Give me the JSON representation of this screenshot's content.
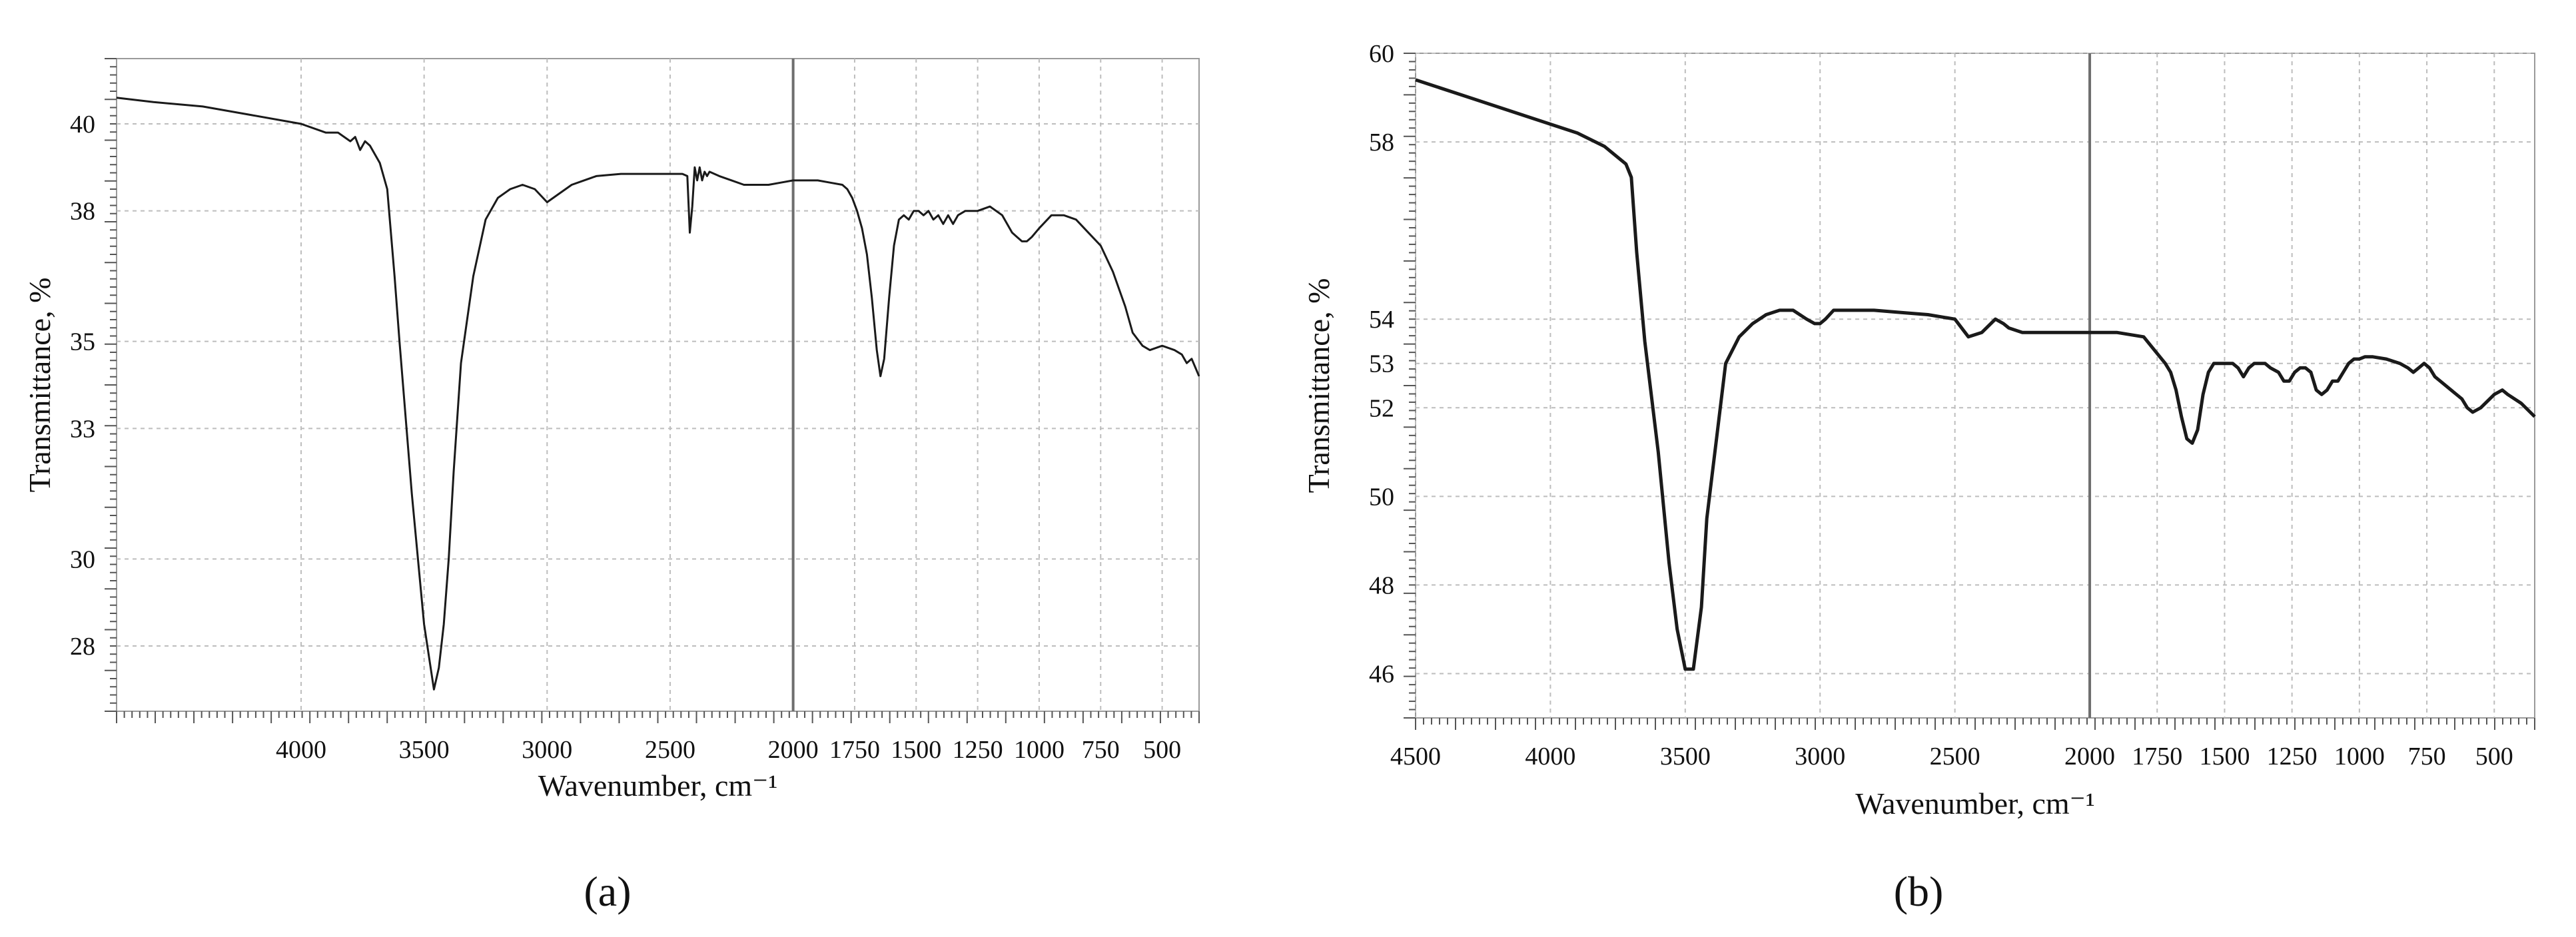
{
  "chart_data": [
    {
      "type": "line",
      "panel_label": "(a)",
      "xlabel": "Wavenumber, cm⁻¹",
      "ylabel": "Transmittance, %",
      "xlim": [
        4750,
        350
      ],
      "ylim": [
        26.5,
        41.5
      ],
      "x_reversed": true,
      "grid": true,
      "x_ticks": [
        4000,
        3500,
        3000,
        2500,
        2000,
        1750,
        1500,
        1250,
        1000,
        750,
        500
      ],
      "x_tick_labels": [
        "4000",
        "3500",
        "3000",
        "2500",
        "2000",
        "1750",
        "1500",
        "1250",
        "1000",
        "750",
        "500"
      ],
      "y_ticks": [
        28,
        30,
        33,
        35,
        38,
        40
      ],
      "y_tick_labels": [
        "28",
        "30",
        "33",
        "35",
        "38",
        "40"
      ],
      "series": [
        {
          "x": [
            4750,
            4600,
            4400,
            4200,
            4000,
            3900,
            3850,
            3800,
            3780,
            3760,
            3740,
            3720,
            3700,
            3680,
            3650,
            3620,
            3600,
            3550,
            3500,
            3460,
            3440,
            3420,
            3400,
            3380,
            3350,
            3300,
            3250,
            3200,
            3150,
            3100,
            3050,
            3000,
            2950,
            2900,
            2850,
            2800,
            2700,
            2600,
            2500,
            2450,
            2430,
            2420,
            2410,
            2400,
            2390,
            2380,
            2370,
            2360,
            2350,
            2340,
            2300,
            2250,
            2200,
            2100,
            2050,
            2000,
            1950,
            1900,
            1850,
            1800,
            1780,
            1760,
            1740,
            1720,
            1700,
            1680,
            1660,
            1645,
            1630,
            1610,
            1590,
            1570,
            1550,
            1530,
            1510,
            1490,
            1470,
            1450,
            1430,
            1410,
            1390,
            1370,
            1350,
            1330,
            1300,
            1250,
            1200,
            1150,
            1130,
            1110,
            1090,
            1070,
            1050,
            1030,
            1000,
            950,
            900,
            850,
            800,
            750,
            700,
            650,
            620,
            580,
            550,
            500,
            450,
            420,
            400,
            380,
            350
          ],
          "y": [
            40.6,
            40.5,
            40.4,
            40.2,
            40.0,
            39.8,
            39.8,
            39.6,
            39.7,
            39.4,
            39.6,
            39.5,
            39.3,
            39.1,
            38.5,
            36.5,
            35.0,
            31.5,
            28.5,
            27.0,
            27.5,
            28.5,
            30.0,
            32.0,
            34.5,
            36.5,
            37.8,
            38.3,
            38.5,
            38.6,
            38.5,
            38.2,
            38.4,
            38.6,
            38.7,
            38.8,
            38.85,
            38.85,
            38.85,
            38.85,
            38.8,
            37.5,
            38.1,
            39.0,
            38.7,
            39.0,
            38.7,
            38.9,
            38.8,
            38.9,
            38.8,
            38.7,
            38.6,
            38.6,
            38.65,
            38.7,
            38.7,
            38.7,
            38.65,
            38.6,
            38.5,
            38.3,
            38.0,
            37.6,
            37.0,
            36.0,
            34.8,
            34.2,
            34.6,
            36.0,
            37.2,
            37.8,
            37.9,
            37.8,
            38.0,
            38.0,
            37.9,
            38.0,
            37.8,
            37.9,
            37.7,
            37.9,
            37.7,
            37.9,
            38.0,
            38.0,
            38.1,
            37.9,
            37.7,
            37.5,
            37.4,
            37.3,
            37.3,
            37.4,
            37.6,
            37.9,
            37.9,
            37.8,
            37.5,
            37.2,
            36.6,
            35.8,
            35.2,
            34.9,
            34.8,
            34.9,
            34.8,
            34.7,
            34.5,
            34.6,
            34.2
          ]
        }
      ]
    },
    {
      "type": "line",
      "panel_label": "(b)",
      "xlabel": "Wavenumber, cm⁻¹",
      "ylabel": "Transmittance, %",
      "xlim": [
        4500,
        350
      ],
      "ylim": [
        45,
        60
      ],
      "x_reversed": true,
      "grid": true,
      "x_ticks": [
        4500,
        4000,
        3500,
        3000,
        2500,
        2000,
        1750,
        1500,
        1250,
        1000,
        750,
        500
      ],
      "x_tick_labels": [
        "4500",
        "4000",
        "3500",
        "3000",
        "2500",
        "2000",
        "1750",
        "1500",
        "1250",
        "1000",
        "750",
        "500"
      ],
      "y_ticks": [
        46,
        48,
        50,
        52,
        53,
        54,
        58,
        60
      ],
      "y_tick_labels": [
        "46",
        "48",
        "50",
        "52",
        "53",
        "54",
        "58",
        "60"
      ],
      "series": [
        {
          "x": [
            4500,
            4300,
            4100,
            3900,
            3800,
            3720,
            3700,
            3680,
            3650,
            3600,
            3560,
            3530,
            3500,
            3470,
            3440,
            3420,
            3380,
            3350,
            3300,
            3250,
            3200,
            3150,
            3100,
            3050,
            3020,
            3000,
            2980,
            2950,
            2900,
            2850,
            2800,
            2700,
            2600,
            2500,
            2450,
            2400,
            2350,
            2320,
            2300,
            2250,
            2200,
            2150,
            2100,
            2050,
            2000,
            1900,
            1800,
            1760,
            1720,
            1700,
            1680,
            1660,
            1640,
            1620,
            1600,
            1580,
            1560,
            1540,
            1520,
            1500,
            1470,
            1450,
            1430,
            1410,
            1390,
            1370,
            1350,
            1330,
            1300,
            1280,
            1260,
            1240,
            1220,
            1200,
            1180,
            1160,
            1140,
            1120,
            1100,
            1080,
            1060,
            1040,
            1020,
            1000,
            980,
            950,
            900,
            850,
            820,
            800,
            780,
            760,
            740,
            720,
            700,
            660,
            620,
            600,
            580,
            550,
            500,
            470,
            450,
            400,
            350
          ],
          "y": [
            59.4,
            59.0,
            58.6,
            58.2,
            57.9,
            57.5,
            57.2,
            55.5,
            53.5,
            51.0,
            48.5,
            47.0,
            46.1,
            46.1,
            47.5,
            49.5,
            51.5,
            53.0,
            53.6,
            53.9,
            54.1,
            54.2,
            54.2,
            54.0,
            53.9,
            53.9,
            54.0,
            54.2,
            54.2,
            54.2,
            54.2,
            54.15,
            54.1,
            54.0,
            53.6,
            53.7,
            54.0,
            53.9,
            53.8,
            53.7,
            53.7,
            53.7,
            53.7,
            53.7,
            53.7,
            53.7,
            53.6,
            53.3,
            53.0,
            52.8,
            52.4,
            51.8,
            51.3,
            51.2,
            51.5,
            52.3,
            52.8,
            53.0,
            53.0,
            53.0,
            53.0,
            52.9,
            52.7,
            52.9,
            53.0,
            53.0,
            53.0,
            52.9,
            52.8,
            52.6,
            52.6,
            52.8,
            52.9,
            52.9,
            52.8,
            52.4,
            52.3,
            52.4,
            52.6,
            52.6,
            52.8,
            53.0,
            53.1,
            53.1,
            53.15,
            53.15,
            53.1,
            53.0,
            52.9,
            52.8,
            52.9,
            53.0,
            52.9,
            52.7,
            52.6,
            52.4,
            52.2,
            52.0,
            51.9,
            52.0,
            52.3,
            52.4,
            52.3,
            52.1,
            51.8
          ]
        }
      ]
    }
  ]
}
